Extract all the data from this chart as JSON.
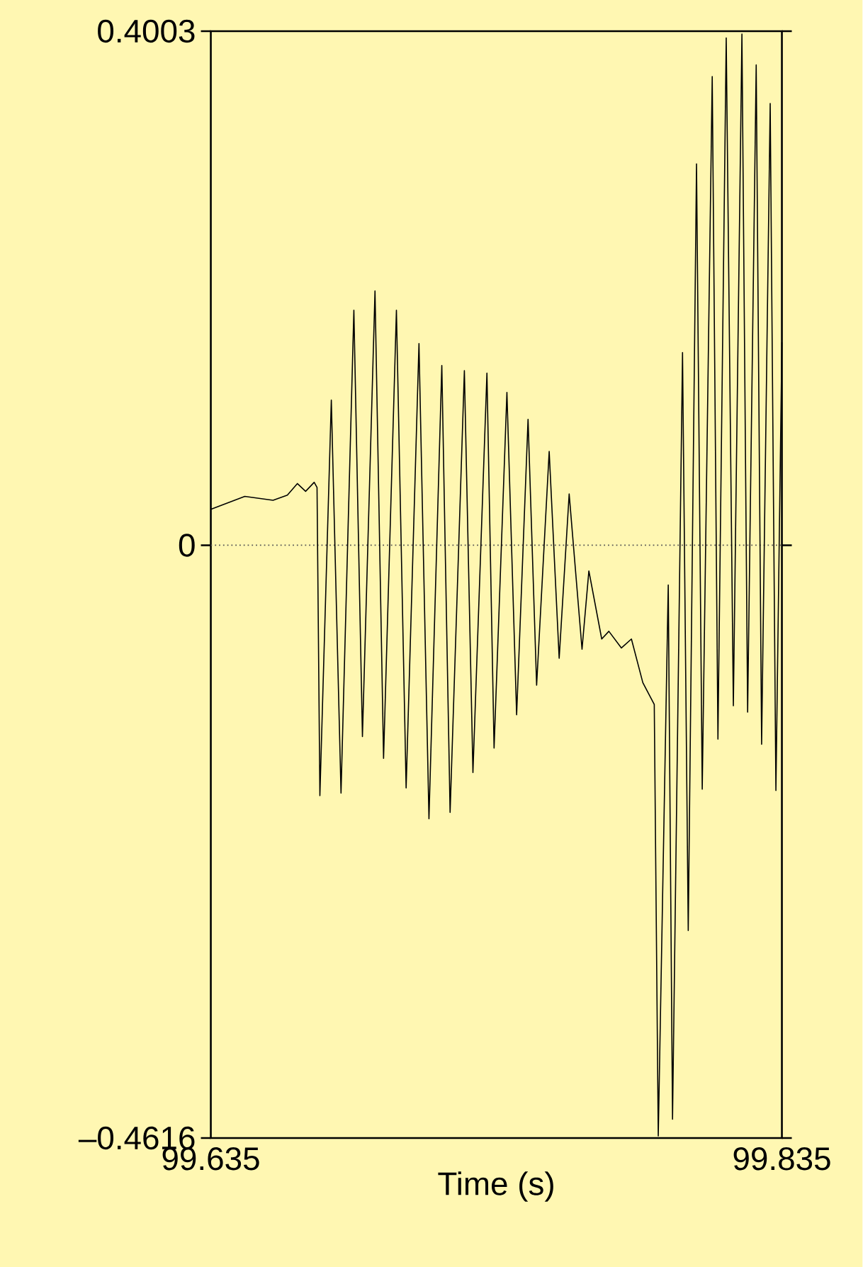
{
  "chart_data": {
    "type": "line",
    "xlabel": "Time (s)",
    "xlim": [
      99.635,
      99.835
    ],
    "ylim": [
      -0.4616,
      0.4003
    ],
    "xticks": [
      99.635,
      99.835
    ],
    "yticks": [
      {
        "value": -0.4616,
        "label": "–0.4616"
      },
      0,
      0.4003
    ],
    "ref_lines": [
      {
        "axis": "y",
        "value": 0,
        "line_style": "dotted"
      }
    ],
    "series": [
      {
        "color": "#000000",
        "x": [
          99.635,
          99.6469,
          99.6568,
          99.6618,
          99.6653,
          99.6682,
          99.6712,
          99.6722,
          99.6732,
          99.6772,
          99.6806,
          99.6851,
          99.6881,
          99.6925,
          99.6955,
          99.7,
          99.7034,
          99.7079,
          99.7114,
          99.7159,
          99.7188,
          99.7238,
          99.7268,
          99.7317,
          99.7342,
          99.7387,
          99.7421,
          99.7461,
          99.7491,
          99.7535,
          99.757,
          99.7605,
          99.765,
          99.7674,
          99.7719,
          99.7744,
          99.7788,
          99.7823,
          99.7863,
          99.7903,
          99.7917,
          99.7952,
          99.7967,
          99.8002,
          99.8022,
          99.8051,
          99.8071,
          99.8106,
          99.8126,
          99.8155,
          99.818,
          99.821,
          99.823,
          99.826,
          99.8279,
          99.8309,
          99.8329,
          99.835
        ],
        "values": [
          0.028,
          0.038,
          0.035,
          0.039,
          0.048,
          0.042,
          0.049,
          0.045,
          -0.195,
          0.113,
          -0.193,
          0.183,
          -0.149,
          0.198,
          -0.166,
          0.183,
          -0.189,
          0.157,
          -0.213,
          0.14,
          -0.208,
          0.136,
          -0.177,
          0.134,
          -0.158,
          0.119,
          -0.132,
          0.098,
          -0.109,
          0.073,
          -0.088,
          0.04,
          -0.081,
          -0.02,
          -0.073,
          -0.067,
          -0.08,
          -0.073,
          -0.107,
          -0.124,
          -0.46,
          -0.031,
          -0.447,
          0.15,
          -0.3,
          0.297,
          -0.19,
          0.365,
          -0.151,
          0.395,
          -0.125,
          0.398,
          -0.13,
          0.374,
          -0.155,
          0.344,
          -0.191,
          0.158
        ]
      }
    ]
  }
}
